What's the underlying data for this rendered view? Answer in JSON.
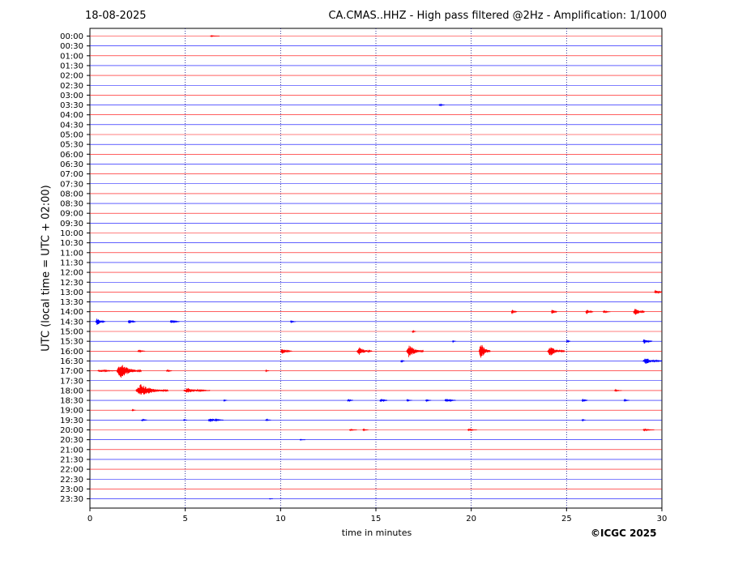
{
  "header": {
    "date": "18-08-2025",
    "title": "CA.CMAS..HHZ - High pass filtered @2Hz - Amplification: 1/1000"
  },
  "footer": {
    "copyright": "©ICGC 2025"
  },
  "chart_data": {
    "type": "line",
    "title": "CA.CMAS..HHZ - High pass filtered @2Hz - Amplification: 1/1000",
    "xlabel": "time in minutes",
    "ylabel": "UTC (local time = UTC + 02:00)",
    "xlim": [
      0,
      30
    ],
    "x_ticks": [
      0,
      5,
      10,
      15,
      20,
      25,
      30
    ],
    "grid": "vertical dotted lines at 5-minute intervals",
    "row_labels": [
      "00:00",
      "00:30",
      "01:00",
      "01:30",
      "02:00",
      "02:30",
      "03:00",
      "03:30",
      "04:00",
      "04:30",
      "05:00",
      "05:30",
      "06:00",
      "06:30",
      "07:00",
      "07:30",
      "08:00",
      "08:30",
      "09:00",
      "09:30",
      "10:00",
      "10:30",
      "11:00",
      "11:30",
      "12:00",
      "12:30",
      "13:00",
      "13:30",
      "14:00",
      "14:30",
      "15:00",
      "15:30",
      "16:00",
      "16:30",
      "17:00",
      "17:30",
      "18:00",
      "18:30",
      "19:00",
      "19:30",
      "20:00",
      "20:30",
      "21:00",
      "21:30",
      "22:00",
      "22:30",
      "23:00",
      "23:30"
    ],
    "trace_colors": [
      "#ff0000",
      "#0000ff"
    ],
    "colors": {
      "even_rows": "#ff0000",
      "odd_rows": "#0000ff",
      "grid": "#000080"
    },
    "events": [
      {
        "row": "00:00",
        "minute": 6.3,
        "amplitude": 0.1,
        "duration": 0.5
      },
      {
        "row": "03:30",
        "minute": 18.3,
        "amplitude": 0.3,
        "duration": 0.3
      },
      {
        "row": "13:00",
        "minute": 29.6,
        "amplitude": 0.6,
        "duration": 0.4
      },
      {
        "row": "14:00",
        "minute": 22.1,
        "amplitude": 0.6,
        "duration": 0.3
      },
      {
        "row": "14:00",
        "minute": 24.2,
        "amplitude": 0.7,
        "duration": 0.3
      },
      {
        "row": "14:00",
        "minute": 26.0,
        "amplitude": 0.7,
        "duration": 0.4
      },
      {
        "row": "14:00",
        "minute": 26.9,
        "amplitude": 0.3,
        "duration": 0.4
      },
      {
        "row": "14:00",
        "minute": 28.5,
        "amplitude": 1.0,
        "duration": 0.6
      },
      {
        "row": "14:30",
        "minute": 0.3,
        "amplitude": 0.9,
        "duration": 0.5
      },
      {
        "row": "14:30",
        "minute": 2.0,
        "amplitude": 0.6,
        "duration": 0.4
      },
      {
        "row": "14:30",
        "minute": 4.2,
        "amplitude": 0.4,
        "duration": 0.5
      },
      {
        "row": "14:30",
        "minute": 10.5,
        "amplitude": 0.2,
        "duration": 0.3
      },
      {
        "row": "15:00",
        "minute": 16.9,
        "amplitude": 0.3,
        "duration": 0.2
      },
      {
        "row": "15:30",
        "minute": 19.0,
        "amplitude": 0.2,
        "duration": 0.2
      },
      {
        "row": "15:30",
        "minute": 25.0,
        "amplitude": 0.4,
        "duration": 0.2
      },
      {
        "row": "15:30",
        "minute": 29.0,
        "amplitude": 0.6,
        "duration": 0.5
      },
      {
        "row": "16:00",
        "minute": 2.5,
        "amplitude": 0.3,
        "duration": 0.4
      },
      {
        "row": "16:00",
        "minute": 10.0,
        "amplitude": 0.7,
        "duration": 0.6
      },
      {
        "row": "16:00",
        "minute": 14.0,
        "amplitude": 1.0,
        "duration": 0.8
      },
      {
        "row": "16:00",
        "minute": 16.6,
        "amplitude": 1.5,
        "duration": 0.9
      },
      {
        "row": "16:00",
        "minute": 20.4,
        "amplitude": 2.2,
        "duration": 0.6
      },
      {
        "row": "16:00",
        "minute": 24.0,
        "amplitude": 1.2,
        "duration": 0.9
      },
      {
        "row": "16:30",
        "minute": 16.3,
        "amplitude": 0.4,
        "duration": 0.2
      },
      {
        "row": "16:30",
        "minute": 29.0,
        "amplitude": 0.8,
        "duration": 2.0
      },
      {
        "row": "17:00",
        "minute": 0.4,
        "amplitude": 0.3,
        "duration": 1.0
      },
      {
        "row": "17:00",
        "minute": 1.4,
        "amplitude": 1.8,
        "duration": 1.3
      },
      {
        "row": "17:00",
        "minute": 4.0,
        "amplitude": 0.3,
        "duration": 0.3
      },
      {
        "row": "17:00",
        "minute": 9.2,
        "amplitude": 0.2,
        "duration": 0.2
      },
      {
        "row": "18:00",
        "minute": 2.4,
        "amplitude": 1.5,
        "duration": 1.7
      },
      {
        "row": "18:00",
        "minute": 4.9,
        "amplitude": 0.6,
        "duration": 1.4
      },
      {
        "row": "18:00",
        "minute": 27.5,
        "amplitude": 0.2,
        "duration": 0.4
      },
      {
        "row": "18:30",
        "minute": 7.0,
        "amplitude": 0.2,
        "duration": 0.2
      },
      {
        "row": "18:30",
        "minute": 13.5,
        "amplitude": 0.3,
        "duration": 0.3
      },
      {
        "row": "18:30",
        "minute": 15.2,
        "amplitude": 0.5,
        "duration": 0.4
      },
      {
        "row": "18:30",
        "minute": 16.6,
        "amplitude": 0.2,
        "duration": 0.3
      },
      {
        "row": "18:30",
        "minute": 17.6,
        "amplitude": 0.2,
        "duration": 0.3
      },
      {
        "row": "18:30",
        "minute": 18.6,
        "amplitude": 0.4,
        "duration": 0.6
      },
      {
        "row": "18:30",
        "minute": 25.8,
        "amplitude": 0.4,
        "duration": 0.3
      },
      {
        "row": "18:30",
        "minute": 28.0,
        "amplitude": 0.2,
        "duration": 0.3
      },
      {
        "row": "19:00",
        "minute": 2.2,
        "amplitude": 0.2,
        "duration": 0.2
      },
      {
        "row": "19:30",
        "minute": 2.7,
        "amplitude": 0.3,
        "duration": 0.3
      },
      {
        "row": "19:30",
        "minute": 4.9,
        "amplitude": 0.2,
        "duration": 0.2
      },
      {
        "row": "19:30",
        "minute": 6.2,
        "amplitude": 0.5,
        "duration": 0.8
      },
      {
        "row": "19:30",
        "minute": 9.2,
        "amplitude": 0.2,
        "duration": 0.3
      },
      {
        "row": "19:30",
        "minute": 25.8,
        "amplitude": 0.2,
        "duration": 0.2
      },
      {
        "row": "20:00",
        "minute": 13.6,
        "amplitude": 0.2,
        "duration": 0.4
      },
      {
        "row": "20:00",
        "minute": 14.3,
        "amplitude": 0.2,
        "duration": 0.3
      },
      {
        "row": "20:00",
        "minute": 19.8,
        "amplitude": 0.2,
        "duration": 0.5
      },
      {
        "row": "20:00",
        "minute": 29.0,
        "amplitude": 0.2,
        "duration": 0.6
      },
      {
        "row": "20:30",
        "minute": 11.0,
        "amplitude": 0.1,
        "duration": 0.3
      },
      {
        "row": "23:30",
        "minute": 9.4,
        "amplitude": 0.1,
        "duration": 0.2
      }
    ]
  }
}
